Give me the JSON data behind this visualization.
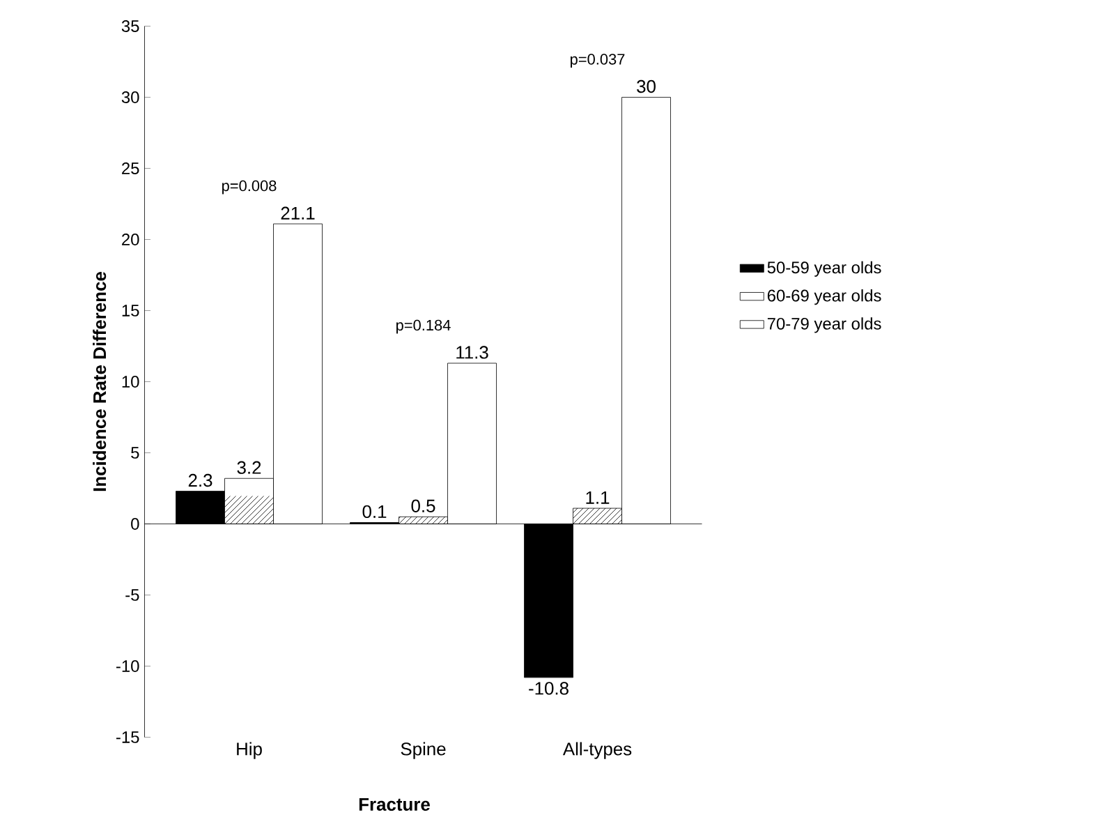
{
  "chart_data": {
    "type": "bar",
    "xlabel": "Fracture",
    "ylabel": "Incidence Rate Difference",
    "categories": [
      "Hip",
      "Spine",
      "All-types"
    ],
    "series": [
      {
        "name": "50-59 year olds",
        "color": "#000000",
        "values": [
          2.3,
          0.1,
          -10.8
        ]
      },
      {
        "name": "60-69 year olds",
        "color": "#000000",
        "values": [
          3.2,
          0.5,
          1.1
        ]
      },
      {
        "name": "70-79 year olds",
        "color": "#ffffff",
        "values": [
          21.1,
          11.3,
          30
        ]
      }
    ],
    "ylim": [
      -15,
      35
    ],
    "yticks": [
      -15,
      -10,
      -5,
      0,
      5,
      10,
      15,
      20,
      25,
      30,
      35
    ],
    "ref_lines": [
      {
        "axis": "y",
        "value": 0
      }
    ],
    "data_labels": true,
    "legend": "right",
    "grid": false,
    "annotations": [
      "p=0.008",
      "p=0.184",
      "p=0.037"
    ]
  }
}
